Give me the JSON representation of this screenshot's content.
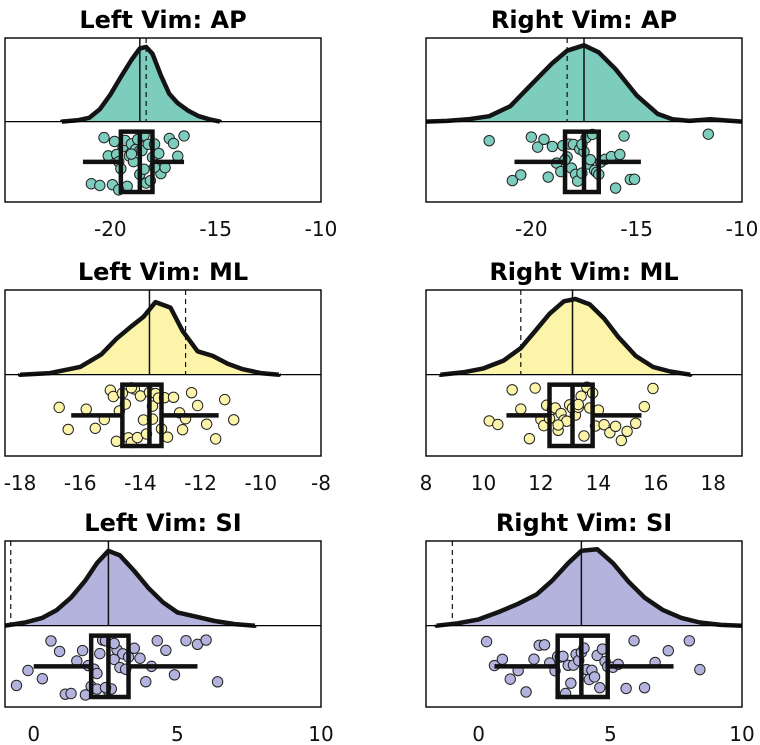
{
  "chart_data": [
    {
      "type": "raincloud",
      "title": "Left Vim: AP",
      "color": "#7ccdbd",
      "xlim": [
        -25,
        -10
      ],
      "xticks": [
        -20,
        -15,
        -10
      ],
      "reference_x": -18.3,
      "median": -18.6,
      "q1": -19.5,
      "q3": -18.0,
      "whisker_low": -21.3,
      "whisker_high": -16.5,
      "density_x": [
        -22.3,
        -21.5,
        -21.0,
        -20.5,
        -20.0,
        -19.5,
        -19.0,
        -18.6,
        -18.3,
        -18.0,
        -17.6,
        -17.2,
        -16.8,
        -16.3,
        -15.8,
        -15.3,
        -14.8
      ],
      "density_y": [
        0.0,
        0.02,
        0.05,
        0.16,
        0.35,
        0.58,
        0.8,
        0.95,
        0.97,
        0.88,
        0.6,
        0.36,
        0.24,
        0.14,
        0.07,
        0.03,
        0.0
      ],
      "points": [
        -20.9,
        -20.5,
        -20.3,
        -20.1,
        -19.9,
        -19.8,
        -19.7,
        -19.6,
        -19.5,
        -19.4,
        -19.3,
        -19.2,
        -19.1,
        -19.0,
        -18.9,
        -18.8,
        -18.7,
        -18.6,
        -18.6,
        -18.5,
        -18.4,
        -18.3,
        -18.2,
        -18.1,
        -18.0,
        -17.9,
        -17.8,
        -17.7,
        -17.6,
        -17.4,
        -17.2,
        -17.0,
        -16.8,
        -16.5,
        -19.6,
        -19.0,
        -18.4,
        -17.9
      ]
    },
    {
      "type": "raincloud",
      "title": "Right Vim: AP",
      "color": "#7ccdbd",
      "xlim": [
        -25,
        -10
      ],
      "xticks": [
        -20,
        -15,
        -10
      ],
      "reference_x": -18.3,
      "median": -17.5,
      "q1": -18.4,
      "q3": -16.8,
      "whisker_low": -20.8,
      "whisker_high": -14.8,
      "density_x": [
        -25.0,
        -24.0,
        -23.0,
        -22.0,
        -21.0,
        -20.0,
        -19.0,
        -18.3,
        -17.5,
        -16.8,
        -16.0,
        -15.0,
        -14.0,
        -13.3,
        -12.5,
        -11.5,
        -10.5,
        -10.0
      ],
      "density_y": [
        0.0,
        0.01,
        0.03,
        0.07,
        0.2,
        0.48,
        0.76,
        0.92,
        0.99,
        0.9,
        0.68,
        0.34,
        0.1,
        0.03,
        0.01,
        0.03,
        0.01,
        0.0
      ],
      "points": [
        -22.0,
        -20.9,
        -20.5,
        -20.0,
        -19.7,
        -19.4,
        -19.2,
        -19.0,
        -18.8,
        -18.6,
        -18.5,
        -18.3,
        -18.2,
        -18.1,
        -18.0,
        -17.9,
        -17.8,
        -17.7,
        -17.6,
        -17.5,
        -17.4,
        -17.3,
        -17.2,
        -17.1,
        -17.0,
        -16.9,
        -16.7,
        -16.5,
        -16.2,
        -16.0,
        -15.8,
        -15.6,
        -15.3,
        -15.1,
        -11.6,
        -18.4,
        -17.6,
        -16.8
      ]
    },
    {
      "type": "raincloud",
      "title": "Left Vim: ML",
      "color": "#fcf4a9",
      "xlim": [
        -18.5,
        -8
      ],
      "xticks": [
        -18,
        -16,
        -14,
        -12,
        -10,
        -8
      ],
      "reference_x": -12.5,
      "median": -13.7,
      "q1": -14.6,
      "q3": -13.3,
      "whisker_low": -16.3,
      "whisker_high": -11.4,
      "density_x": [
        -18.0,
        -17.0,
        -16.0,
        -15.3,
        -14.8,
        -14.3,
        -13.9,
        -13.5,
        -13.0,
        -12.6,
        -12.1,
        -11.6,
        -11.1,
        -10.6,
        -10.0,
        -9.4
      ],
      "density_y": [
        0.0,
        0.02,
        0.1,
        0.26,
        0.46,
        0.62,
        0.74,
        0.93,
        0.86,
        0.56,
        0.3,
        0.24,
        0.14,
        0.07,
        0.02,
        0.0
      ],
      "points": [
        -16.7,
        -16.4,
        -15.8,
        -15.5,
        -15.2,
        -15.0,
        -14.9,
        -14.8,
        -14.7,
        -14.6,
        -14.5,
        -14.4,
        -14.3,
        -14.2,
        -14.1,
        -14.0,
        -13.9,
        -13.8,
        -13.7,
        -13.6,
        -13.5,
        -13.4,
        -13.3,
        -13.2,
        -13.1,
        -12.9,
        -12.7,
        -12.5,
        -12.3,
        -12.1,
        -11.8,
        -11.5,
        -11.2,
        -10.9,
        -14.3,
        -13.6,
        -12.6
      ]
    },
    {
      "type": "raincloud",
      "title": "Right Vim: ML",
      "color": "#fcf4a9",
      "xlim": [
        8,
        19
      ],
      "xticks": [
        8,
        10,
        12,
        14,
        16,
        18
      ],
      "reference_x": 11.3,
      "median": 13.1,
      "q1": 12.3,
      "q3": 13.8,
      "whisker_low": 10.8,
      "whisker_high": 15.5,
      "density_x": [
        8.5,
        9.3,
        10.0,
        10.7,
        11.3,
        11.8,
        12.3,
        12.8,
        13.2,
        13.7,
        14.2,
        14.7,
        15.3,
        15.9,
        16.5,
        17.2
      ],
      "density_y": [
        0.0,
        0.03,
        0.08,
        0.18,
        0.34,
        0.56,
        0.78,
        0.94,
        0.97,
        0.9,
        0.72,
        0.48,
        0.24,
        0.1,
        0.04,
        0.0
      ],
      "points": [
        10.2,
        10.5,
        11.0,
        11.3,
        11.6,
        11.8,
        12.0,
        12.1,
        12.2,
        12.3,
        12.4,
        12.5,
        12.6,
        12.7,
        12.8,
        12.9,
        13.0,
        13.1,
        13.2,
        13.3,
        13.4,
        13.5,
        13.6,
        13.7,
        13.8,
        13.9,
        14.0,
        14.2,
        14.4,
        14.6,
        14.8,
        15.0,
        15.3,
        15.6,
        15.9,
        12.6,
        13.3
      ]
    },
    {
      "type": "raincloud",
      "title": "Left Vim: SI",
      "color": "#b3b3de",
      "xlim": [
        -1,
        10
      ],
      "xticks": [
        0,
        5,
        10
      ],
      "reference_x": -0.8,
      "median": 2.6,
      "q1": 2.0,
      "q3": 3.3,
      "whisker_low": 0.0,
      "whisker_high": 5.7,
      "density_x": [
        -1.0,
        -0.3,
        0.3,
        0.8,
        1.3,
        1.8,
        2.2,
        2.6,
        3.0,
        3.5,
        4.0,
        4.5,
        5.0,
        5.6,
        6.3,
        7.0,
        7.7
      ],
      "density_y": [
        0.0,
        0.04,
        0.1,
        0.2,
        0.36,
        0.58,
        0.8,
        0.96,
        0.9,
        0.7,
        0.48,
        0.3,
        0.17,
        0.12,
        0.06,
        0.02,
        0.0
      ],
      "points": [
        -0.6,
        -0.2,
        0.3,
        0.6,
        0.9,
        1.1,
        1.3,
        1.5,
        1.7,
        1.8,
        1.9,
        2.0,
        2.1,
        2.2,
        2.3,
        2.4,
        2.5,
        2.6,
        2.7,
        2.8,
        2.9,
        3.0,
        3.1,
        3.2,
        3.3,
        3.5,
        3.7,
        3.9,
        4.1,
        4.3,
        4.6,
        4.9,
        5.3,
        5.7,
        6.0,
        6.4,
        2.5,
        2.8,
        2.2
      ]
    },
    {
      "type": "raincloud",
      "title": "Right Vim: SI",
      "color": "#b3b3de",
      "xlim": [
        -2,
        10
      ],
      "xticks": [
        0,
        5,
        10
      ],
      "reference_x": -1.0,
      "median": 3.9,
      "q1": 3.0,
      "q3": 4.9,
      "whisker_low": 0.6,
      "whisker_high": 7.4,
      "density_x": [
        -1.6,
        -0.8,
        0.0,
        0.8,
        1.5,
        2.2,
        2.8,
        3.4,
        3.9,
        4.5,
        5.1,
        5.7,
        6.3,
        7.0,
        7.7,
        8.4,
        9.2,
        10.0
      ],
      "density_y": [
        0.0,
        0.03,
        0.08,
        0.18,
        0.28,
        0.4,
        0.58,
        0.8,
        0.96,
        0.98,
        0.8,
        0.56,
        0.36,
        0.2,
        0.1,
        0.04,
        0.01,
        0.0
      ],
      "points": [
        0.3,
        0.6,
        0.9,
        1.2,
        1.5,
        1.8,
        2.1,
        2.3,
        2.5,
        2.7,
        2.9,
        3.0,
        3.1,
        3.2,
        3.3,
        3.4,
        3.5,
        3.6,
        3.7,
        3.8,
        3.9,
        4.0,
        4.1,
        4.2,
        4.3,
        4.4,
        4.5,
        4.6,
        4.7,
        4.8,
        4.9,
        5.1,
        5.3,
        5.6,
        5.9,
        6.3,
        6.7,
        7.2,
        8.0,
        8.4
      ]
    }
  ]
}
